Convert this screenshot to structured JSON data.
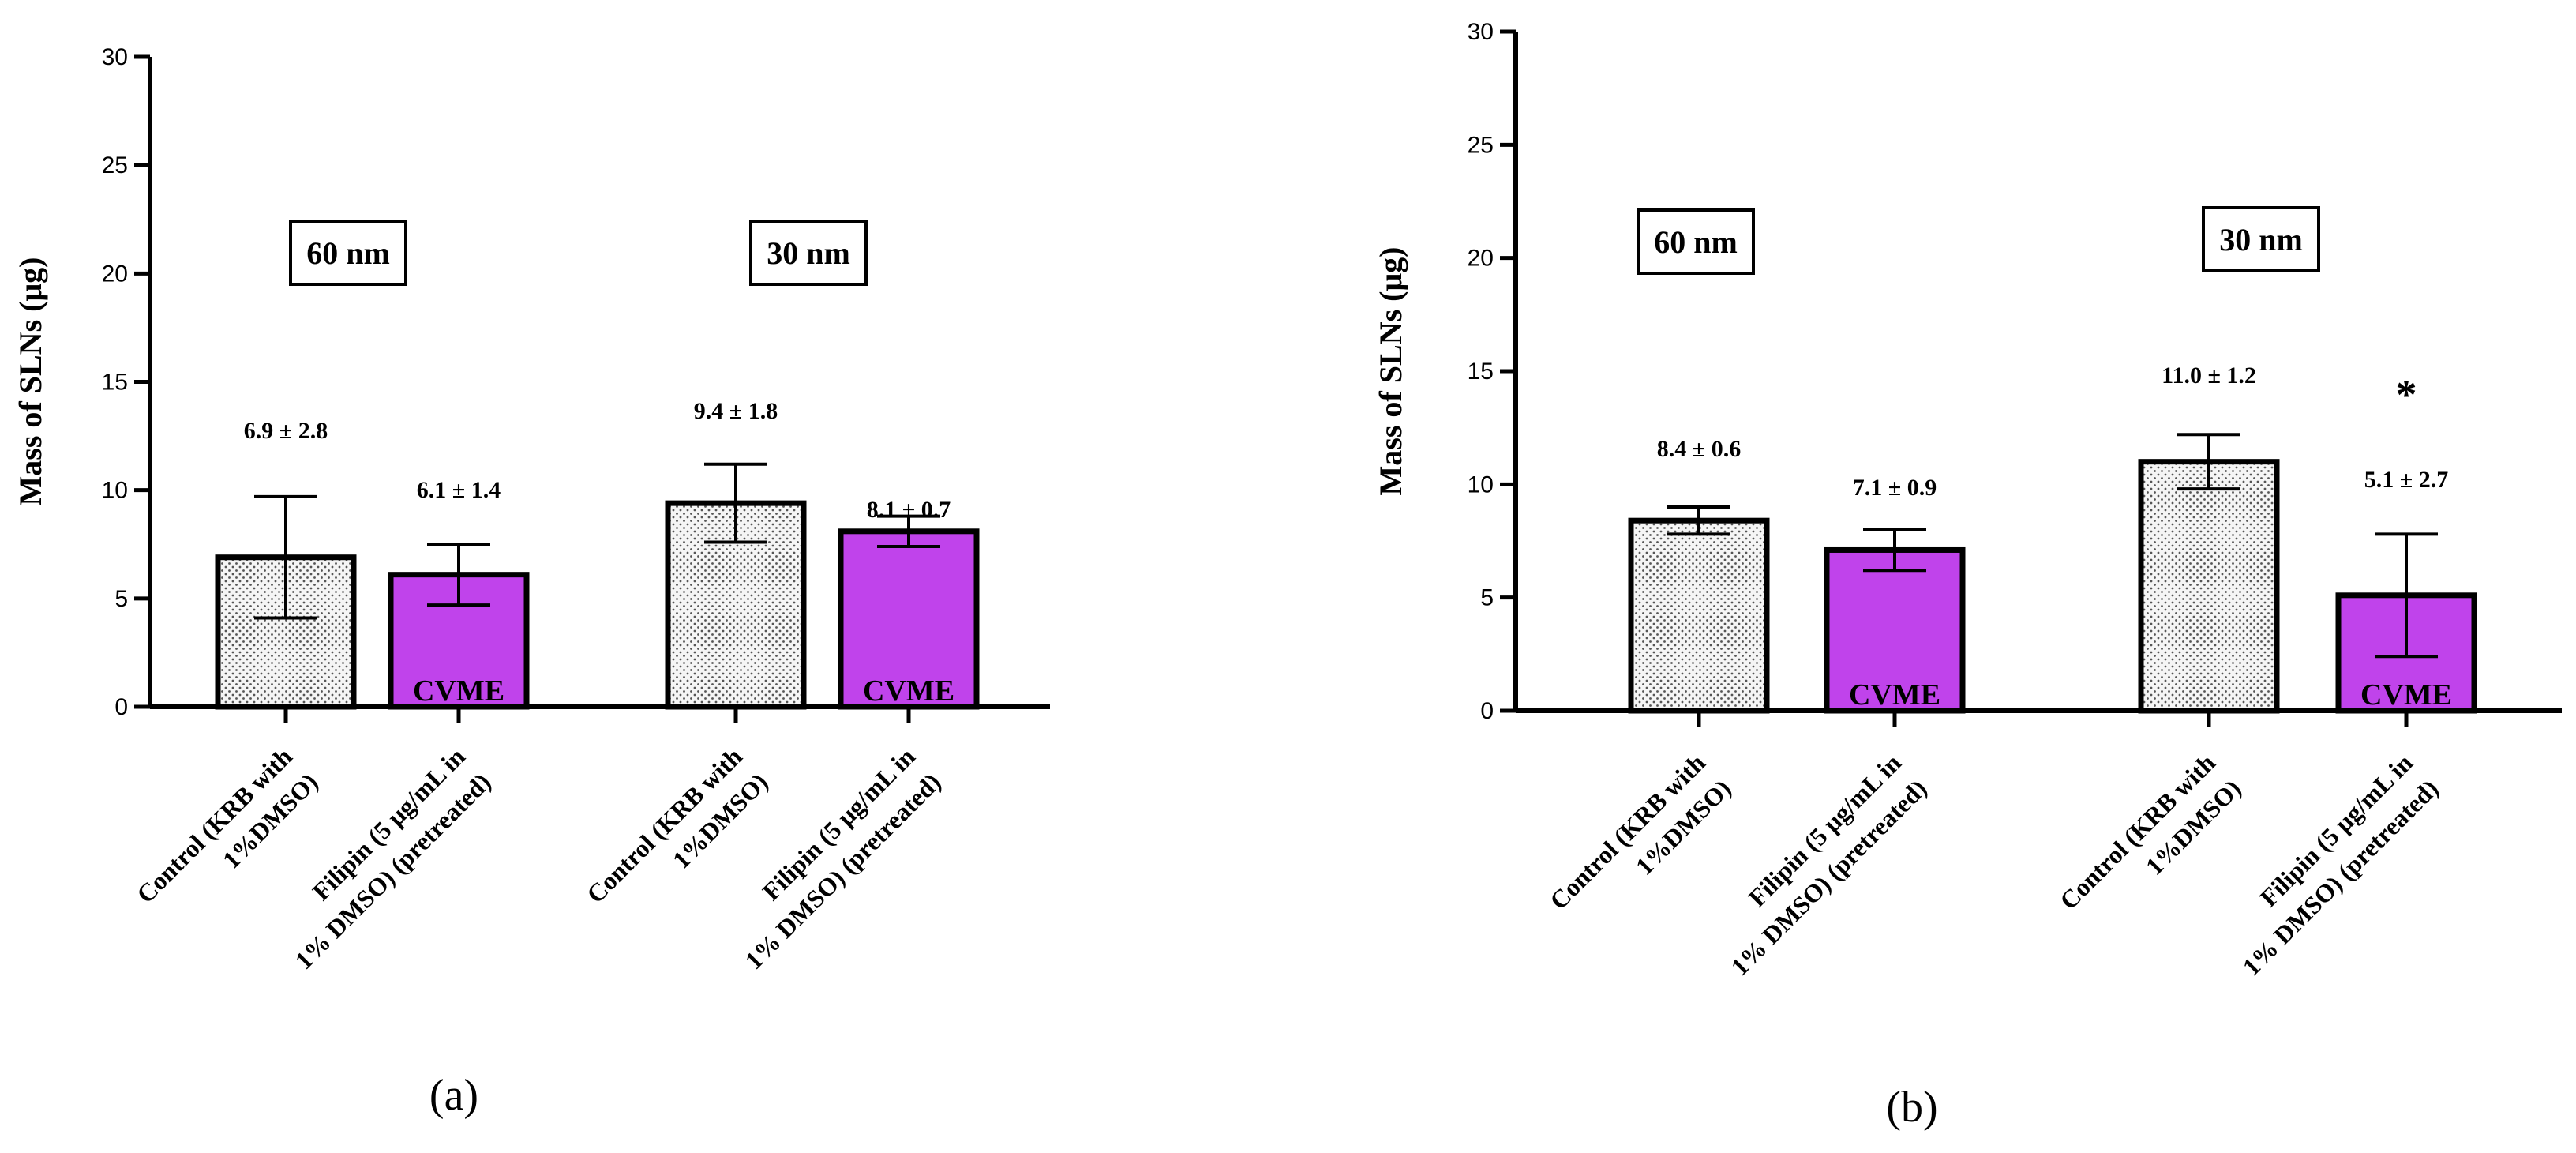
{
  "chart_data": [
    {
      "type": "bar",
      "panel_label": "(a)",
      "ylabel": "Mass of SLNs (μg)",
      "ylim": [
        0,
        30
      ],
      "yticks": [
        0,
        5,
        10,
        15,
        20,
        25,
        30
      ],
      "grid": false,
      "groups": [
        {
          "label": "60 nm"
        },
        {
          "label": "30 nm"
        }
      ],
      "categories": [
        [
          "Control (KRB with",
          "1%DMSO)"
        ],
        [
          "Filipin (5 μg/mL in",
          "1% DMSO) (pretreated)"
        ],
        [
          "Control (KRB with",
          "1%DMSO)"
        ],
        [
          "Filipin (5 μg/mL in",
          "1% DMSO) (pretreated)"
        ]
      ],
      "values": [
        6.9,
        6.1,
        9.4,
        8.1
      ],
      "errors": [
        2.8,
        1.4,
        1.8,
        0.7
      ],
      "annotations": [
        "6.9 ± 2.8",
        "6.1 ± 1.4",
        "9.4 ± 1.8",
        "8.1 ± 0.7"
      ],
      "bar_styles": [
        "dotted",
        "purple",
        "dotted",
        "purple"
      ],
      "bar_text": [
        "",
        "CVME",
        "",
        "CVME"
      ],
      "significance": [
        "",
        "",
        "",
        ""
      ]
    },
    {
      "type": "bar",
      "panel_label": "(b)",
      "ylabel": "Mass of SLNs (μg)",
      "ylim": [
        0,
        30
      ],
      "yticks": [
        0,
        5,
        10,
        15,
        20,
        25,
        30
      ],
      "grid": false,
      "groups": [
        {
          "label": "60 nm"
        },
        {
          "label": "30 nm"
        }
      ],
      "categories": [
        [
          "Control (KRB with",
          "1%DMSO)"
        ],
        [
          "Filipin (5 μg/mL in",
          "1% DMSO) (pretreated)"
        ],
        [
          "Control (KRB with",
          "1%DMSO)"
        ],
        [
          "Filipin (5 μg/mL in",
          "1% DMSO) (pretreated)"
        ]
      ],
      "values": [
        8.4,
        7.1,
        11.0,
        5.1
      ],
      "errors": [
        0.6,
        0.9,
        1.2,
        2.7
      ],
      "annotations": [
        "8.4 ± 0.6",
        "7.1 ± 0.9",
        "11.0 ± 1.2",
        "5.1 ± 2.7"
      ],
      "bar_styles": [
        "dotted",
        "purple",
        "dotted",
        "purple"
      ],
      "bar_text": [
        "",
        "CVME",
        "",
        "CVME"
      ],
      "significance": [
        "",
        "",
        "",
        "*"
      ]
    }
  ],
  "colors": {
    "purple": "#c043eb",
    "dotted_fill": "#f4f4f4",
    "dot": "#555555",
    "axis": "#000000"
  }
}
